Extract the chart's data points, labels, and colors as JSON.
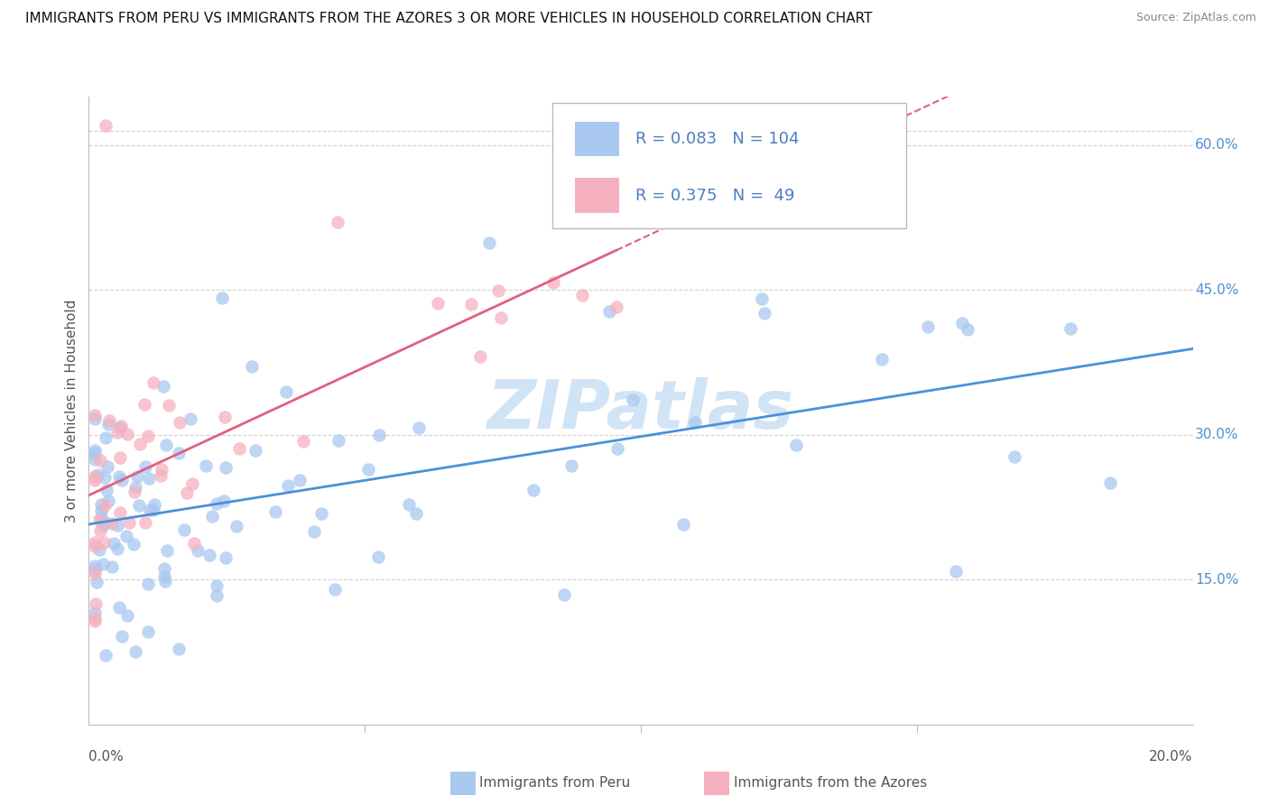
{
  "title": "IMMIGRANTS FROM PERU VS IMMIGRANTS FROM THE AZORES 3 OR MORE VEHICLES IN HOUSEHOLD CORRELATION CHART",
  "source": "Source: ZipAtlas.com",
  "ylabel": "3 or more Vehicles in Household",
  "ytick_labels": [
    "15.0%",
    "30.0%",
    "45.0%",
    "60.0%"
  ],
  "ytick_values": [
    0.15,
    0.3,
    0.45,
    0.6
  ],
  "xlim": [
    0.0,
    0.2
  ],
  "ylim": [
    0.0,
    0.65
  ],
  "blue_R": 0.083,
  "blue_N": 104,
  "pink_R": 0.375,
  "pink_N": 49,
  "blue_color": "#a8c8f0",
  "pink_color": "#f5b0c0",
  "blue_line_color": "#4a90d9",
  "pink_line_color": "#e06080",
  "legend_text_color": "#4a7fc1",
  "right_label_color": "#5090d0",
  "watermark_color": "#d0e4f5",
  "grid_color": "#d0d0d0"
}
